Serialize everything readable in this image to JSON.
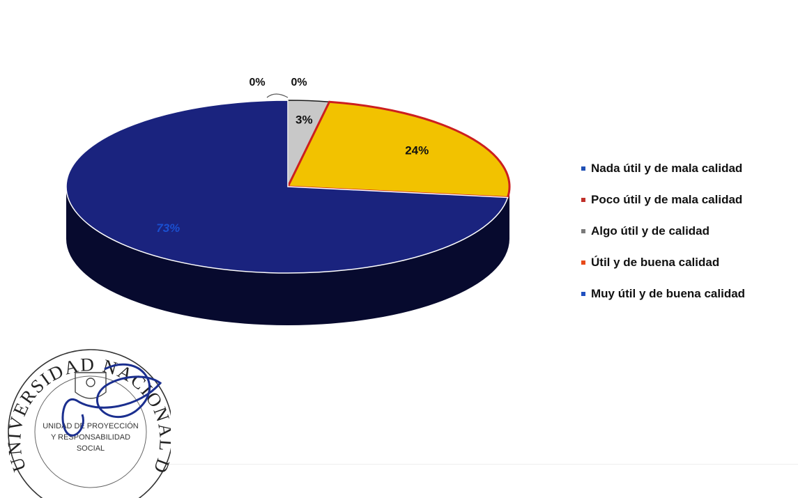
{
  "chart_data": {
    "type": "pie",
    "three_d": true,
    "categories": [
      "Nada útil y de mala calidad",
      "Poco útil y de mala calidad",
      "Algo útil y de calidad",
      "Útil y de buena calidad",
      "Muy útil y de buena calidad"
    ],
    "values": [
      0,
      0,
      3,
      24,
      73
    ],
    "data_labels": [
      "0%",
      "0%",
      "3%",
      "24%",
      "73%"
    ],
    "colors": [
      "#1f3c99",
      "#b22222",
      "#c8c8c8",
      "#f2c200",
      "#1a237e"
    ],
    "slice_outline_colors": [
      "#000000",
      "#000000",
      "#1a1a1a",
      "#cc1f1f",
      "#ffffff"
    ],
    "legend_marker_colors": [
      "#1f4fb4",
      "#c0302a",
      "#7a7a7a",
      "#e84a1a",
      "#2050c0"
    ],
    "legend_position": "right",
    "start_angle": "top",
    "direction": "clockwise"
  },
  "seal": {
    "text_arc": "UNIVERSIDAD NACIONAL DE FRONTERA",
    "text_inner": [
      "UNIDAD DE PROYECCIÓN",
      "Y RESPONSABILIDAD",
      "SOCIAL"
    ]
  }
}
